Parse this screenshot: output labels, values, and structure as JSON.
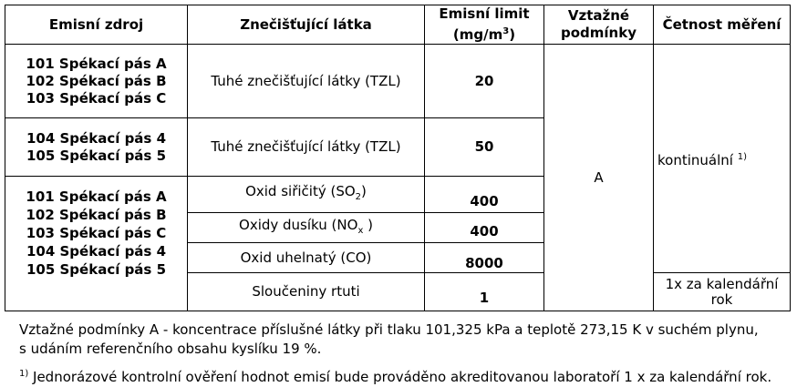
{
  "headers": {
    "source": "Emisní zdroj",
    "pollutant": "Znečišťující látka",
    "limit_line1": "Emisní limit",
    "limit_line2_pre": "(mg/m",
    "limit_line2_sup": "3",
    "limit_line2_post": ")",
    "conditions_line1": "Vztažné",
    "conditions_line2": "podmínky",
    "frequency": "Četnost měření"
  },
  "group1": {
    "sources": [
      "101 Spékací pás A",
      "102 Spékací pás B",
      "103 Spékací pás C"
    ],
    "pollutant": "Tuhé znečišťující látky (TZL)",
    "limit": "20"
  },
  "group2": {
    "sources": [
      "104 Spékací pás 4",
      "105 Spékací pás 5"
    ],
    "pollutant": "Tuhé znečišťující látky (TZL)",
    "limit": "50"
  },
  "group3": {
    "sources": [
      "101 Spékací pás A",
      "102 Spékací pás B",
      "103 Spékací pás C",
      "104 Spékací pás 4",
      "105 Spékací pás 5"
    ],
    "rows": [
      {
        "pollutant_pre": "Oxid siřičitý (SO",
        "pollutant_sub": "2",
        "pollutant_post": ")",
        "limit": "400"
      },
      {
        "pollutant_pre": "Oxidy dusíku (NO",
        "pollutant_sub": "x",
        "pollutant_post": " )",
        "limit": "400"
      },
      {
        "pollutant_pre": "Oxid uhelnatý (CO)",
        "pollutant_sub": "",
        "pollutant_post": "",
        "limit": "8000"
      },
      {
        "pollutant_pre": "Sloučeniny rtuti",
        "pollutant_sub": "",
        "pollutant_post": "",
        "limit": "1"
      }
    ]
  },
  "conditions_value": "A",
  "frequency_main": "kontinuální",
  "frequency_main_sup": "1)",
  "frequency_mercury_line1": "1x za kalendářní",
  "frequency_mercury_line2": "rok",
  "notes": {
    "conditions_line1": "Vztažné podmínky A - koncentrace příslušné látky při tlaku 101,325 kPa a teplotě 273,15 K v suchém plynu,",
    "conditions_line2": "s udáním referenčního obsahu kyslíku 19 %.",
    "footnote_mark": "1)",
    "footnote_text": " Jednorázové kontrolní ověření hodnot emisí bude prováděno akreditovanou laboratoří 1 x za kalendářní rok."
  }
}
